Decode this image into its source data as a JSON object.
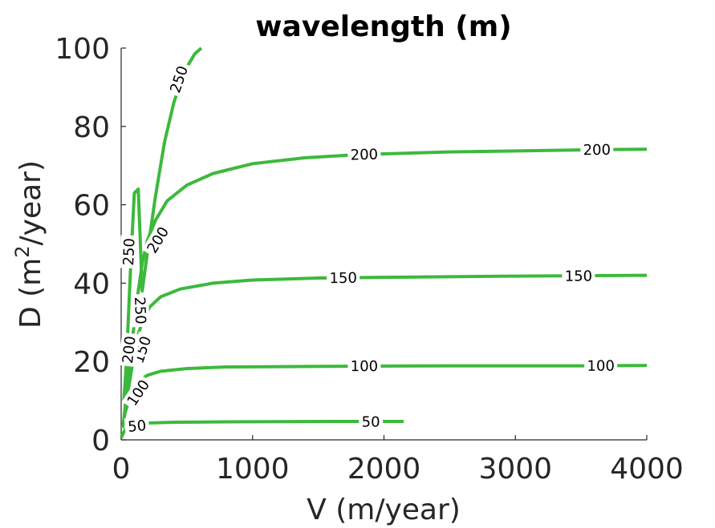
{
  "chart_data": {
    "type": "line",
    "subtype": "contour",
    "title": "wavelength (m)",
    "xlabel": {
      "prefix": "V (m/year)",
      "sup": "",
      "suffix": ""
    },
    "ylabel": {
      "prefix": "D (m",
      "sup": "2",
      "suffix": "/year)"
    },
    "xlim": [
      0,
      4000
    ],
    "ylim": [
      0,
      100
    ],
    "xticks": [
      "0",
      "1000",
      "2000",
      "3000",
      "4000"
    ],
    "yticks": [
      "0",
      "20",
      "40",
      "60",
      "80",
      "100"
    ],
    "color": "#3cb93c",
    "series": [
      {
        "name": "50",
        "level": 50,
        "x": [
          0,
          20,
          40,
          60,
          100,
          200,
          400,
          800,
          1200,
          1600,
          2000,
          2150
        ],
        "y": [
          0.5,
          2.0,
          3.0,
          3.6,
          4.0,
          4.3,
          4.5,
          4.6,
          4.65,
          4.7,
          4.7,
          4.7
        ],
        "labels": [
          {
            "text": "50",
            "x": 120,
            "y": 3.5
          },
          {
            "text": "50",
            "x": 1900,
            "y": 4.6
          }
        ]
      },
      {
        "name": "100",
        "level": 100,
        "x": [
          10,
          30,
          60,
          100,
          150,
          200,
          300,
          500,
          800,
          1200,
          1700,
          2500,
          3500,
          4000
        ],
        "y": [
          3,
          7,
          10,
          13,
          15.5,
          16.5,
          17.5,
          18.2,
          18.6,
          18.7,
          18.8,
          18.9,
          18.9,
          19.0
        ],
        "labels": [
          {
            "text": "100",
            "x": 130,
            "y": 12
          },
          {
            "text": "100",
            "x": 1850,
            "y": 18.8
          },
          {
            "text": "100",
            "x": 3650,
            "y": 18.9
          }
        ]
      },
      {
        "name": "150",
        "level": 150,
        "x": [
          20,
          50,
          90,
          130,
          170,
          220,
          300,
          450,
          700,
          1000,
          1500,
          2000,
          3000,
          4000
        ],
        "y": [
          5,
          12,
          20,
          27,
          31,
          34,
          36.5,
          38.5,
          40,
          40.8,
          41.3,
          41.5,
          41.8,
          42.0
        ],
        "labels": [
          {
            "text": "150",
            "x": 160,
            "y": 23
          },
          {
            "text": "150",
            "x": 1690,
            "y": 41.3
          },
          {
            "text": "150",
            "x": 3480,
            "y": 41.8
          }
        ]
      },
      {
        "name": "200",
        "level": 200,
        "x": [
          20,
          50,
          90,
          130,
          160,
          200,
          260,
          350,
          500,
          700,
          1000,
          1400,
          1800,
          2500,
          3500,
          4000
        ],
        "y": [
          5,
          15,
          27,
          38,
          45,
          51,
          56,
          61,
          65,
          68,
          70.5,
          72,
          72.8,
          73.5,
          74.0,
          74.2
        ],
        "labels": [
          {
            "text": "200",
            "x": 60,
            "y": 23
          },
          {
            "text": "200",
            "x": 280,
            "y": 51
          },
          {
            "text": "200",
            "x": 1850,
            "y": 72.8
          },
          {
            "text": "200",
            "x": 3620,
            "y": 74.0
          }
        ]
      },
      {
        "name": "250",
        "level": 250,
        "x": [
          20,
          40,
          60,
          80,
          100,
          130,
          160,
          200,
          260,
          330,
          400,
          480,
          560,
          610
        ],
        "y": [
          10,
          20,
          35,
          50,
          63,
          64,
          38,
          48,
          62,
          76,
          86,
          94,
          98.5,
          100
        ],
        "labels": [
          {
            "text": "250",
            "x": 60,
            "y": 48
          },
          {
            "text": "250",
            "x": 145,
            "y": 33
          },
          {
            "text": "250",
            "x": 440,
            "y": 92
          }
        ]
      }
    ]
  }
}
